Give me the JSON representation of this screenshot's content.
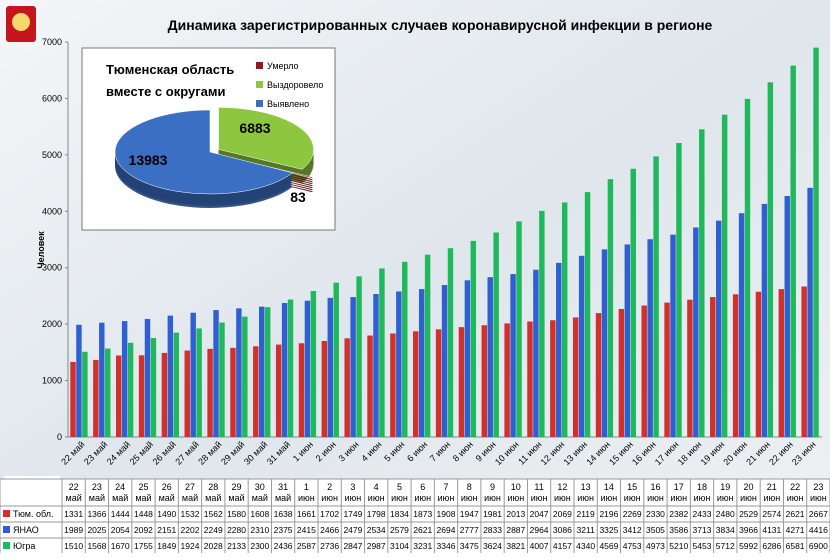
{
  "chart_data": [
    {
      "type": "bar",
      "title": "Динамика зарегистрированных случаев коронавирусной инфекции  в регионе",
      "y_label": "Человек",
      "categories": [
        "22 май",
        "23 май",
        "24 май",
        "25 май",
        "26 май",
        "27 май",
        "28 май",
        "29 май",
        "30 май",
        "31 май",
        "1 июн",
        "2 июн",
        "3 июн",
        "4 июн",
        "5 июн",
        "6 июн",
        "7 июн",
        "8 июн",
        "9 июн",
        "10 июн",
        "11 июн",
        "12 июн",
        "13 июн",
        "14 июн",
        "15 июн",
        "16 июн",
        "17 июн",
        "18 июн",
        "19 июн",
        "20 июн",
        "21 июн",
        "22 июн",
        "23 июн"
      ],
      "series": [
        {
          "name": "Тюм. обл.",
          "color": "#d0312d",
          "values": [
            1331,
            1366,
            1444,
            1448,
            1490,
            1532,
            1562,
            1580,
            1608,
            1638,
            1661,
            1702,
            1749,
            1798,
            1834,
            1873,
            1908,
            1947,
            1981,
            2013,
            2047,
            2069,
            2119,
            2196,
            2269,
            2330,
            2382,
            2433,
            2480,
            2529,
            2574,
            2621,
            2667
          ]
        },
        {
          "name": "ЯНАО",
          "color": "#2f5fd0",
          "values": [
            1989,
            2025,
            2054,
            2092,
            2151,
            2202,
            2249,
            2280,
            2310,
            2375,
            2415,
            2466,
            2479,
            2534,
            2579,
            2621,
            2694,
            2777,
            2833,
            2887,
            2964,
            3086,
            3211,
            3325,
            3412,
            3505,
            3586,
            3713,
            3834,
            3966,
            4131,
            4271,
            4416
          ]
        },
        {
          "name": "Югра",
          "color": "#1fb85c",
          "values": [
            1510,
            1568,
            1670,
            1755,
            1849,
            1924,
            2028,
            2133,
            2300,
            2436,
            2587,
            2736,
            2847,
            2987,
            3104,
            3231,
            3346,
            3475,
            3624,
            3821,
            4007,
            4157,
            4340,
            4569,
            4753,
            4973,
            5210,
            5453,
            5712,
            5992,
            6286,
            6581,
            6900
          ]
        }
      ],
      "ylim": [
        0,
        7000
      ],
      "yticks": [
        0,
        1000,
        2000,
        3000,
        4000,
        5000,
        6000,
        7000
      ],
      "grid": false
    },
    {
      "type": "pie",
      "title": "Тюменская область вместе с округами",
      "categories": [
        "Умерло",
        "Выздоровело",
        "Выявлено"
      ],
      "values": [
        83,
        6883,
        13983
      ],
      "colors": [
        "#8b1a1a",
        "#8dc63f",
        "#3a6fc4"
      ]
    }
  ]
}
